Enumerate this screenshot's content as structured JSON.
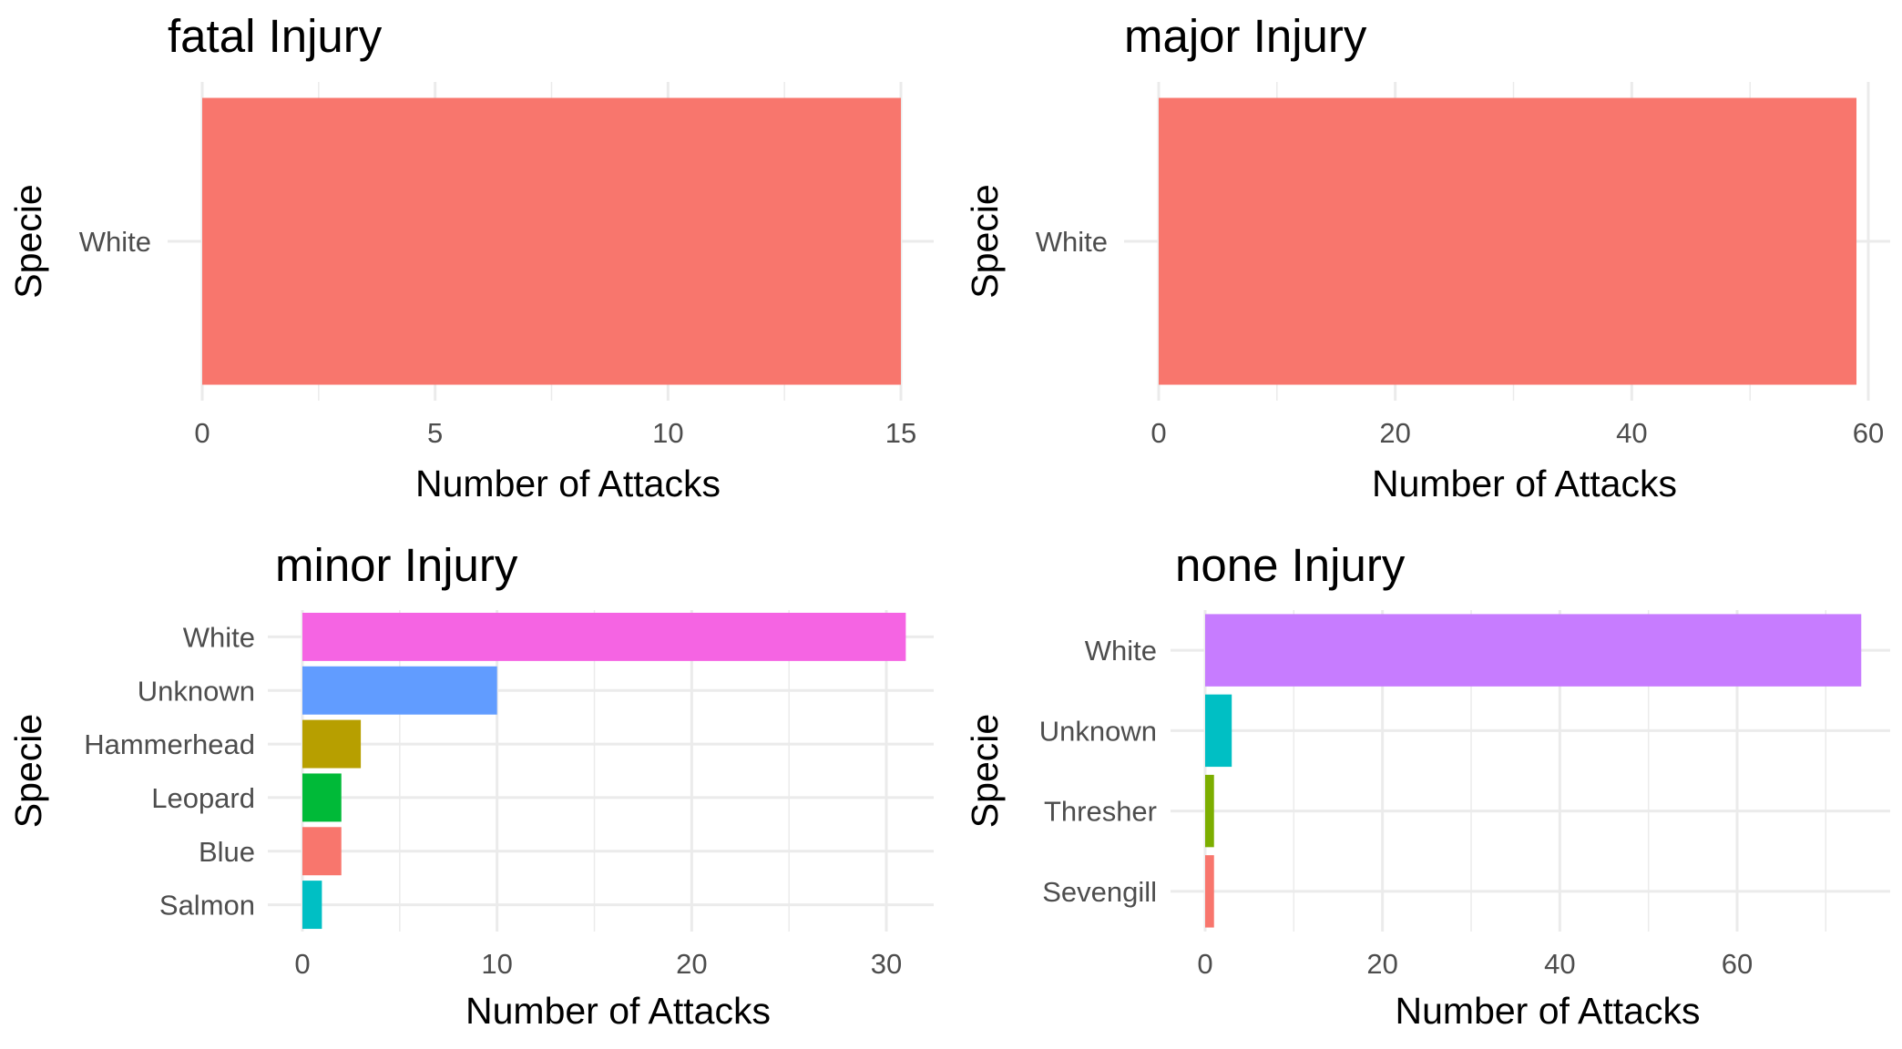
{
  "chart_data": [
    {
      "type": "bar",
      "orientation": "horizontal",
      "title": "fatal Injury",
      "xlabel": "Number of Attacks",
      "ylabel": "Specie",
      "categories": [
        "White"
      ],
      "values": [
        15
      ],
      "colors": [
        "#F8766D"
      ],
      "xlim": [
        0,
        15
      ],
      "xticks": [
        0,
        5,
        10,
        15
      ],
      "grid": true,
      "legend": "none"
    },
    {
      "type": "bar",
      "orientation": "horizontal",
      "title": "major Injury",
      "xlabel": "Number of Attacks",
      "ylabel": "Specie",
      "categories": [
        "White"
      ],
      "values": [
        59
      ],
      "colors": [
        "#F8766D"
      ],
      "xlim": [
        0,
        59
      ],
      "xticks": [
        0,
        20,
        40,
        60
      ],
      "grid": true,
      "legend": "none"
    },
    {
      "type": "bar",
      "orientation": "horizontal",
      "title": "minor Injury",
      "xlabel": "Number of Attacks",
      "ylabel": "Specie",
      "categories": [
        "White",
        "Unknown",
        "Hammerhead",
        "Leopard",
        "Blue",
        "Salmon"
      ],
      "values": [
        31,
        10,
        3,
        2,
        2,
        1
      ],
      "colors": [
        "#F564E3",
        "#619CFF",
        "#B79F00",
        "#00BA38",
        "#F8766D",
        "#00BFC4"
      ],
      "xlim": [
        0,
        31
      ],
      "xticks": [
        0,
        10,
        20,
        30
      ],
      "grid": true,
      "legend": "none"
    },
    {
      "type": "bar",
      "orientation": "horizontal",
      "title": "none Injury",
      "xlabel": "Number of Attacks",
      "ylabel": "Specie",
      "categories": [
        "White",
        "Unknown",
        "Thresher",
        "Sevengill"
      ],
      "values": [
        74,
        3,
        1,
        1
      ],
      "colors": [
        "#C77CFF",
        "#00BFC4",
        "#7CAE00",
        "#F8766D"
      ],
      "xlim": [
        0,
        74
      ],
      "xticks": [
        0,
        20,
        40,
        60
      ],
      "grid": true,
      "legend": "none"
    }
  ]
}
